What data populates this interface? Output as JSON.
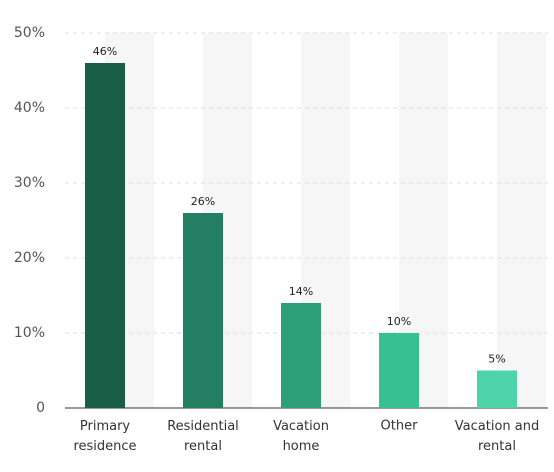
{
  "chart_data": {
    "type": "bar",
    "categories": [
      "Primary residence",
      "Residential rental",
      "Vacation home",
      "Other",
      "Vacation and rental"
    ],
    "values": [
      46,
      26,
      14,
      10,
      5
    ],
    "value_labels": [
      "46%",
      "26%",
      "14%",
      "10%",
      "5%"
    ],
    "colors": [
      "#1a5e48",
      "#237e62",
      "#2d9e78",
      "#37c192",
      "#4fd3a8"
    ],
    "ylim": [
      0,
      50
    ],
    "yticks": [
      0,
      {
        "value": 10,
        "label": "10%"
      },
      {
        "value": 20,
        "label": "20%"
      },
      {
        "value": 30,
        "label": "30%"
      },
      {
        "value": 40,
        "label": "40%"
      },
      {
        "value": 50,
        "label": "50%"
      }
    ],
    "grid": true
  }
}
